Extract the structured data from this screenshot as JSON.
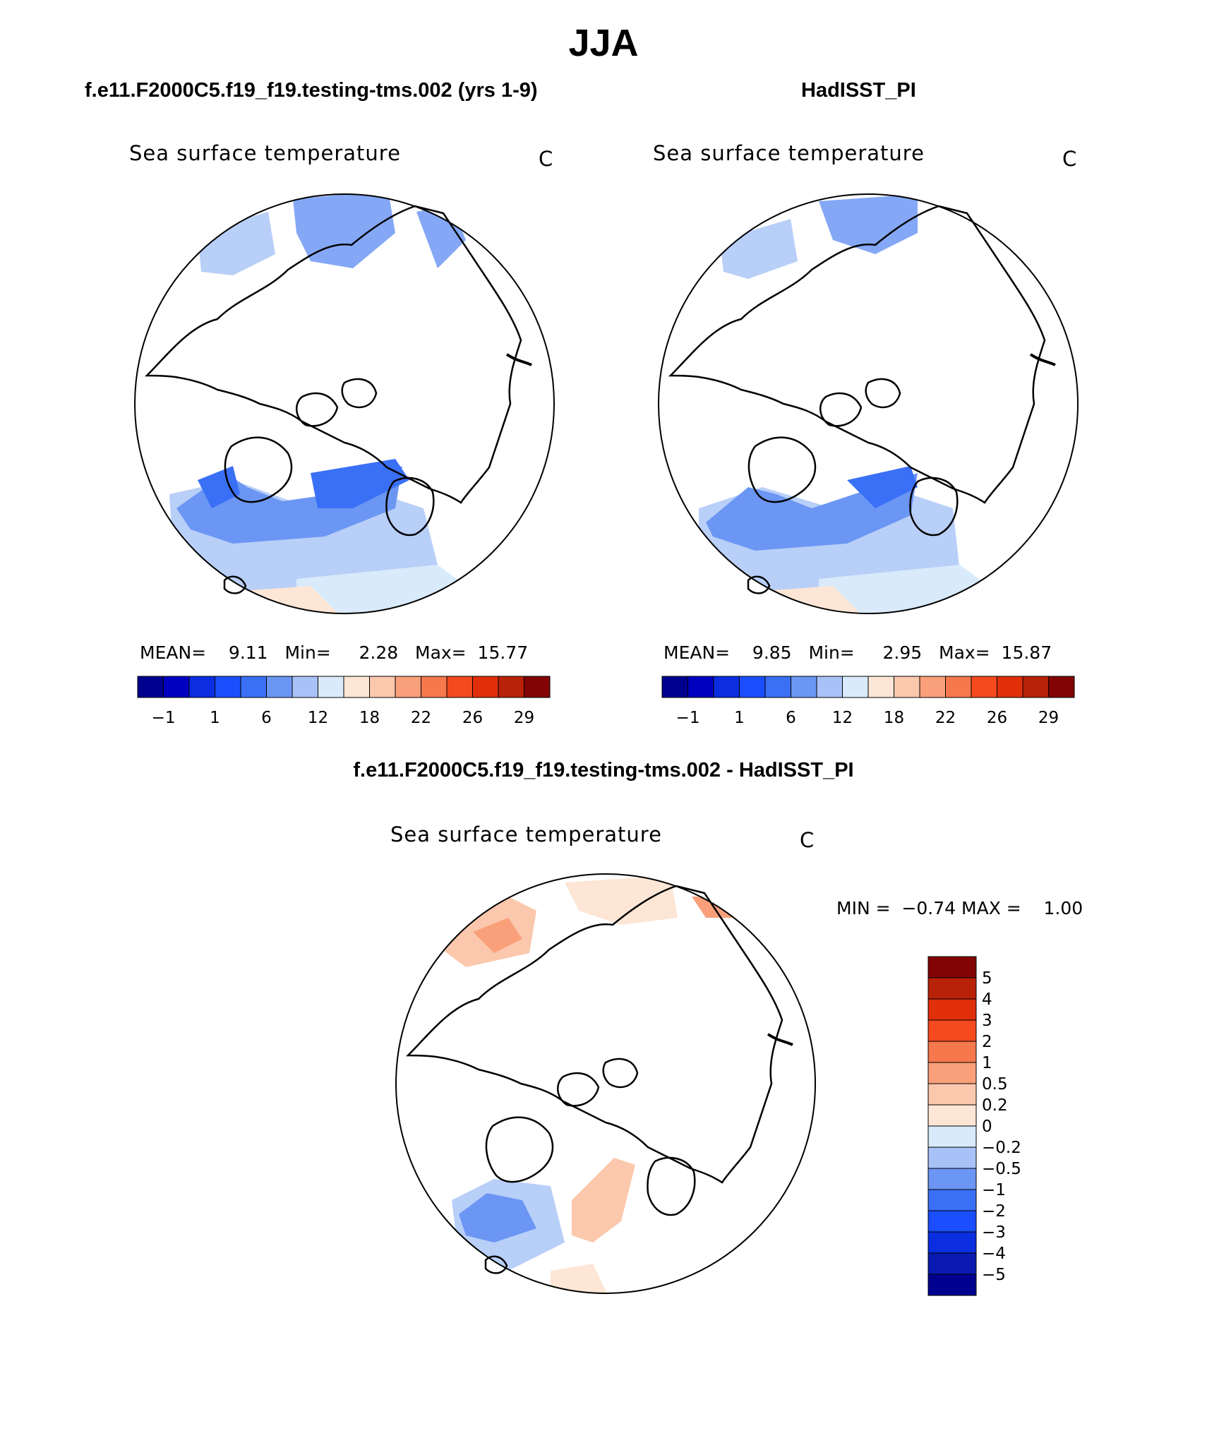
{
  "title": "JJA",
  "panels": [
    {
      "title": "f.e11.F2000C5.f19_f19.testing-tms.002 (yrs 1-9)",
      "variable": "Sea surface temperature",
      "units": "C",
      "stats": {
        "mean_label": "MEAN=",
        "mean": "9.11",
        "min_label": "Min=",
        "min": "2.28",
        "max_label": "Max=",
        "max": "15.77"
      }
    },
    {
      "title": "HadISST_PI",
      "variable": "Sea surface temperature",
      "units": "C",
      "stats": {
        "mean_label": "MEAN=",
        "mean": "9.85",
        "min_label": "Min=",
        "min": "2.95",
        "max_label": "Max=",
        "max": "15.87"
      }
    }
  ],
  "diff_panel": {
    "title": "f.e11.F2000C5.f19_f19.testing-tms.002 - HadISST_PI",
    "variable": "Sea surface temperature",
    "units": "C",
    "stats": {
      "min_label": "MIN =",
      "min": "−0.74",
      "max_label": "MAX =",
      "max": "1.00"
    }
  },
  "colorbar_sst": {
    "colors": [
      "#00008f",
      "#0000c0",
      "#0a2ee0",
      "#1a4eff",
      "#3a70f6",
      "#6c96f4",
      "#a8c2f8",
      "#d9ebfb",
      "#fde6d5",
      "#fbc8ad",
      "#f9a07a",
      "#f6784c",
      "#f54a1d",
      "#e12f0a",
      "#b82208",
      "#820404"
    ],
    "tick_labels": [
      "−1",
      "1",
      "6",
      "12",
      "18",
      "22",
      "26",
      "29"
    ]
  },
  "colorbar_diff": {
    "colors": [
      "#00008f",
      "#0a1ab0",
      "#0a2ee0",
      "#1a4eff",
      "#3a70f6",
      "#6c96f4",
      "#a8c2f8",
      "#d9ebfb",
      "#fde6d5",
      "#fbc8ad",
      "#f9a07a",
      "#f6784c",
      "#f54a1d",
      "#e12f0a",
      "#b82208",
      "#820404"
    ],
    "tick_labels": [
      "5",
      "4",
      "3",
      "2",
      "1",
      "0.5",
      "0.2",
      "0",
      "−0.2",
      "−0.5",
      "−1",
      "−2",
      "−3",
      "−4",
      "−5"
    ]
  }
}
